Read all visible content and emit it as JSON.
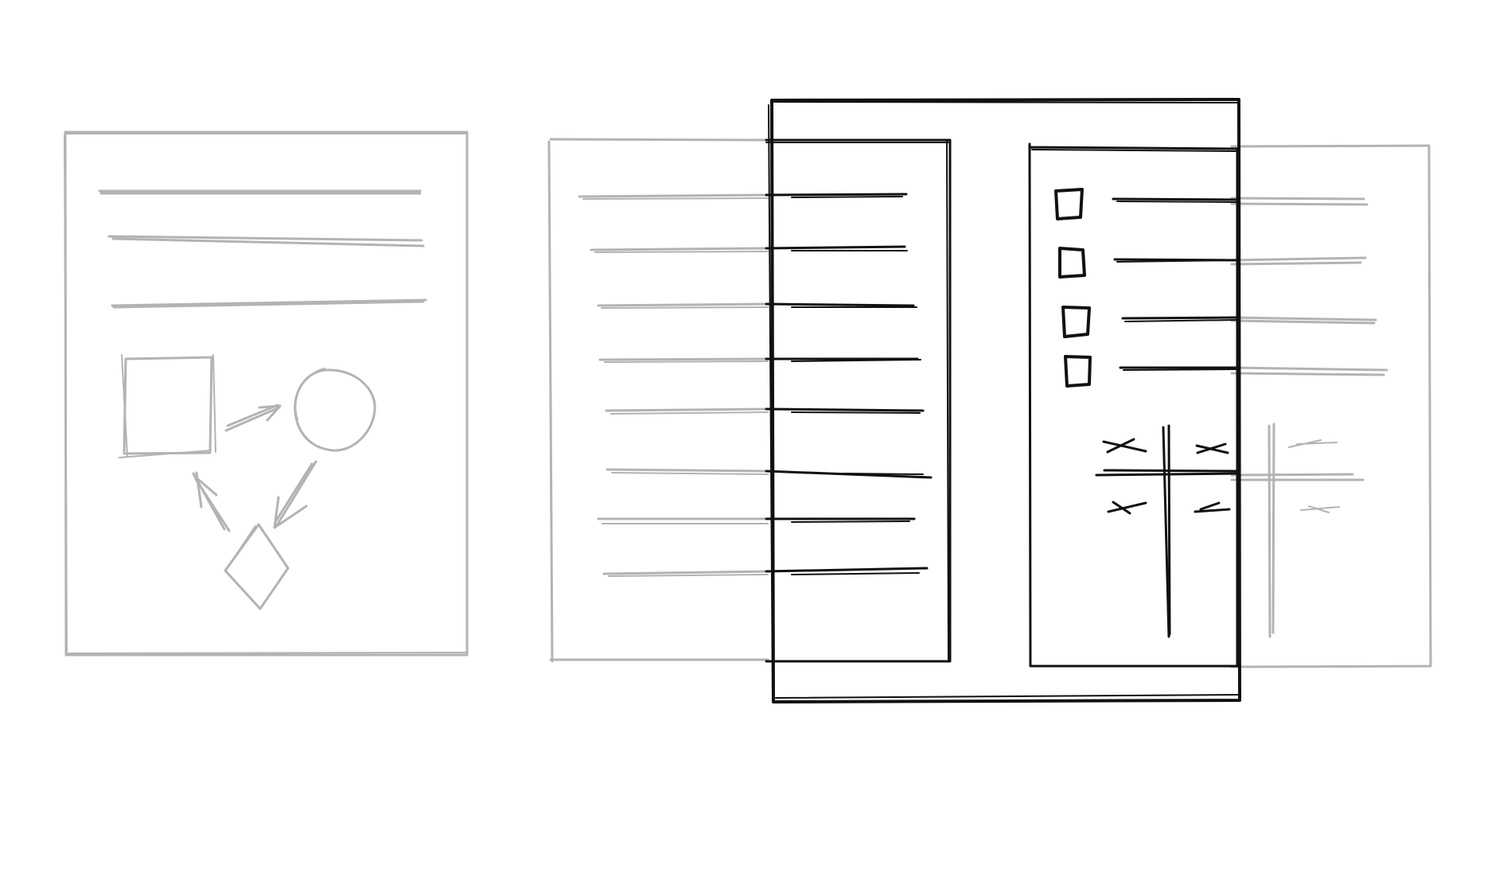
{
  "sketch": {
    "description_visible_text": "",
    "colors": {
      "faded_stroke": "#b3b3b3",
      "ink_stroke": "#111111",
      "background": "#ffffff"
    },
    "panels": [
      {
        "name": "faded-document-with-flowchart",
        "kind": "document",
        "line_count": 3,
        "shapes": [
          "square-icon",
          "circle-icon",
          "diamond-icon"
        ]
      },
      {
        "name": "faded-list-document",
        "kind": "document",
        "line_count": 8
      },
      {
        "name": "focus-frame",
        "kind": "frame"
      },
      {
        "name": "ink-list-panel",
        "kind": "document",
        "line_count": 8
      },
      {
        "name": "ink-checklist-panel",
        "kind": "document",
        "checkbox_count": 4
      },
      {
        "name": "faded-right-document",
        "kind": "document",
        "line_count": 4
      }
    ],
    "checkboxes": [
      {
        "name": "checkbox-1"
      },
      {
        "name": "checkbox-2"
      },
      {
        "name": "checkbox-3"
      },
      {
        "name": "checkbox-4"
      }
    ],
    "tic_tac_toe_marks": [
      "x",
      "x",
      "x",
      "-"
    ]
  }
}
